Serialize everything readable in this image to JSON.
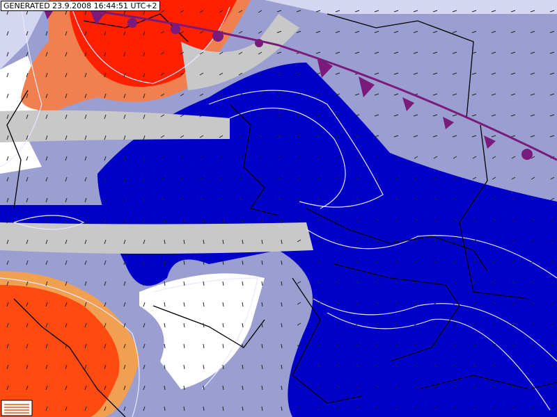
{
  "label": "GENERATED 23.9.2008 16:44:51 UTC+2"
}
